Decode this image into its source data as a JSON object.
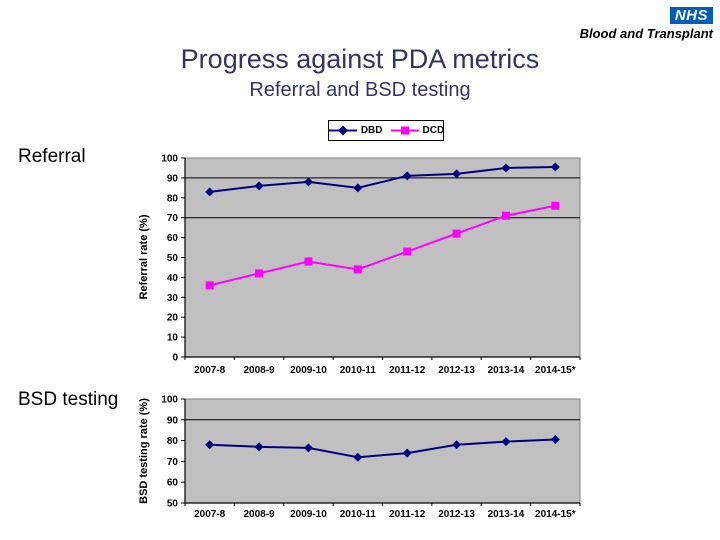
{
  "logo": {
    "nhs": "NHS",
    "org": "Blood and Transplant",
    "nhs_bg": "#005EB8"
  },
  "header": {
    "title": "Progress against PDA metrics",
    "subtitle": "Referral and BSD testing",
    "color": "#333366"
  },
  "legend": {
    "items": [
      {
        "label": "DBD",
        "color": "#000080",
        "marker": "diamond"
      },
      {
        "label": "DCD",
        "color": "#FF00FF",
        "marker": "square"
      }
    ]
  },
  "sections": [
    {
      "label": "Referral"
    },
    {
      "label": "BSD testing"
    }
  ],
  "chart_data": [
    {
      "type": "line",
      "title": "Referral",
      "categories": [
        "2007-8",
        "2008-9",
        "2009-10",
        "2010-11",
        "2011-12",
        "2012-13",
        "2013-14",
        "2014-15*"
      ],
      "series": [
        {
          "name": "DBD",
          "color": "#000080",
          "marker": "diamond",
          "values": [
            83,
            86,
            88,
            85,
            91,
            92,
            95,
            95.5
          ]
        },
        {
          "name": "DCD",
          "color": "#FF00FF",
          "marker": "square",
          "values": [
            36,
            42,
            48,
            44,
            53,
            62,
            71,
            76
          ]
        }
      ],
      "xlabel": "",
      "ylabel": "Referral rate (%)",
      "ylim": [
        0,
        100
      ],
      "ytick_step": 10,
      "ref_lines": [
        90,
        70
      ],
      "plot_bg": "#C0C0C0",
      "grid": "off",
      "legend_position": "top-center-above-chart"
    },
    {
      "type": "line",
      "title": "BSD testing",
      "categories": [
        "2007-8",
        "2008-9",
        "2009-10",
        "2010-11",
        "2011-12",
        "2012-13",
        "2013-14",
        "2014-15*"
      ],
      "series": [
        {
          "name": "DBD",
          "color": "#000080",
          "marker": "diamond",
          "values": [
            78,
            77,
            76.5,
            72,
            74,
            78,
            79.5,
            80.5
          ]
        }
      ],
      "xlabel": "",
      "ylabel": "BSD testing rate (%)",
      "ylim": [
        50,
        100
      ],
      "ytick_step": 10,
      "ref_lines": [
        90
      ],
      "plot_bg": "#C0C0C0",
      "grid": "off",
      "legend_position": "none"
    }
  ]
}
